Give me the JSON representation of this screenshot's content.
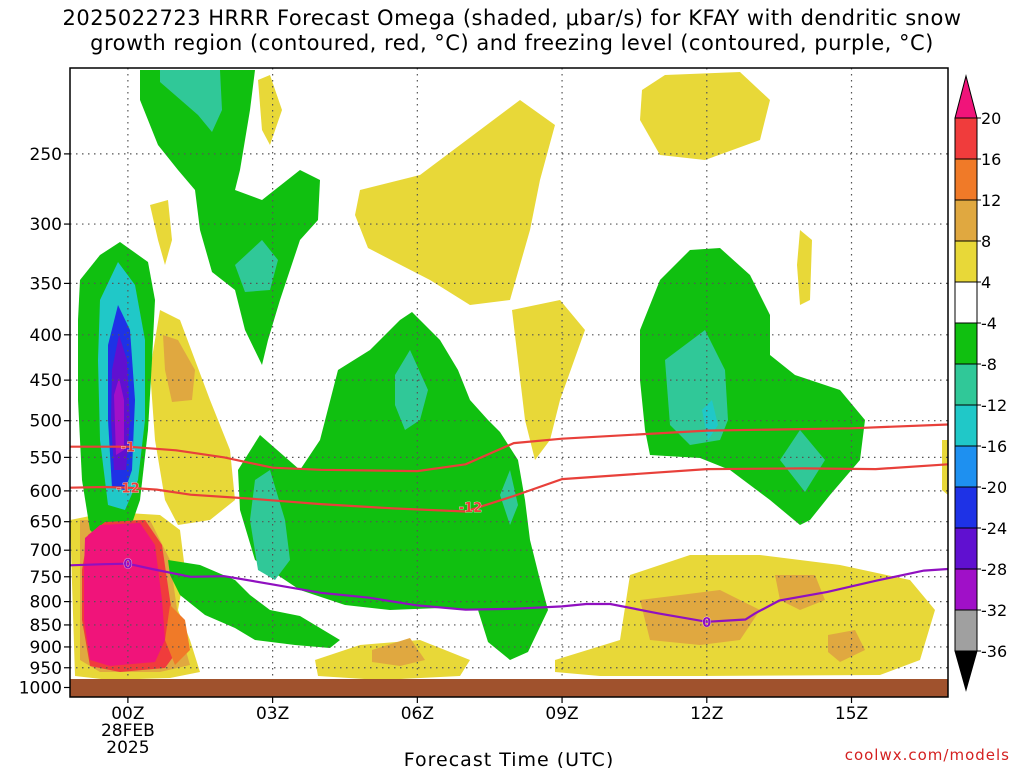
{
  "title_line1": "2025022723 HRRR Forecast Omega (shaded, μbar/s) for KFAY with dendritic snow",
  "title_line2": "growth region (contoured, red, °C) and freezing level (contoured, purple, °C)",
  "credit": "coolwx.com/models",
  "chart_data": {
    "type": "heatmap",
    "title": "2025022723 HRRR Forecast Omega (shaded, μbar/s) for KFAY with dendritic snow growth region (contoured, red, °C) and freezing level (contoured, purple, °C)",
    "xlabel": "Forecast Time (UTC)",
    "ylabel": "",
    "x_unit": "hours",
    "xlim": [
      -1.2,
      17
    ],
    "x_ticks": [
      {
        "hour": 0,
        "label": "00Z",
        "sub1": "28FEB",
        "sub2": "2025"
      },
      {
        "hour": 3,
        "label": "03Z"
      },
      {
        "hour": 6,
        "label": "06Z"
      },
      {
        "hour": 9,
        "label": "09Z"
      },
      {
        "hour": 12,
        "label": "12Z"
      },
      {
        "hour": 15,
        "label": "15Z"
      }
    ],
    "y_scale": "log-pressure",
    "ylim": [
      1025,
      200
    ],
    "y_ticks": [
      250,
      300,
      350,
      400,
      450,
      500,
      550,
      600,
      650,
      700,
      750,
      800,
      850,
      900,
      950,
      1000
    ],
    "grid": true,
    "surface_pressure": 1000,
    "colorbar": {
      "labels": [
        "20",
        "16",
        "12",
        "8",
        "4",
        "-4",
        "-8",
        "-12",
        "-16",
        "-20",
        "-24",
        "-28",
        "-32",
        "-36"
      ],
      "levels": [
        20,
        16,
        12,
        8,
        4,
        -4,
        -8,
        -12,
        -16,
        -20,
        -24,
        -28,
        -32,
        -36
      ],
      "colors": [
        "#f0147a",
        "#f03c3c",
        "#f07a28",
        "#e0a840",
        "#e8d838",
        "#ffffff",
        "#10c010",
        "#30c898",
        "#20c8c8",
        "#1e90f0",
        "#1e32e6",
        "#6010d0",
        "#a010c8",
        "#a0a0a0",
        "#000000"
      ]
    },
    "contours": [
      {
        "name": "-12",
        "color": "#e8403a",
        "label": "-12",
        "points": [
          [
            -1.2,
            595
          ],
          [
            -0.5,
            594
          ],
          [
            0,
            595
          ],
          [
            0.6,
            598
          ],
          [
            1.3,
            606
          ],
          [
            2.5,
            612
          ],
          [
            4,
            621
          ],
          [
            5.5,
            628
          ],
          [
            7,
            633
          ],
          [
            8,
            608
          ],
          [
            9,
            582
          ],
          [
            12,
            567
          ],
          [
            14,
            566
          ],
          [
            15.5,
            567
          ],
          [
            17,
            560
          ]
        ]
      },
      {
        "name": "-1",
        "color": "#e8403a",
        "label": "-1",
        "points": [
          [
            -1.2,
            535
          ],
          [
            0,
            535
          ],
          [
            1,
            540
          ],
          [
            2,
            550
          ],
          [
            3,
            565
          ],
          [
            4,
            568
          ],
          [
            6,
            570
          ],
          [
            7,
            560
          ],
          [
            8,
            530
          ],
          [
            9,
            524
          ],
          [
            12,
            513
          ],
          [
            15,
            510
          ],
          [
            17,
            505
          ]
        ]
      },
      {
        "name": "0",
        "color": "#9010c0",
        "label": "0",
        "points": [
          [
            -1.2,
            728
          ],
          [
            -0.5,
            726
          ],
          [
            0,
            725
          ],
          [
            0.5,
            735
          ],
          [
            1.3,
            750
          ],
          [
            2,
            749
          ],
          [
            3,
            765
          ],
          [
            4,
            782
          ],
          [
            5,
            792
          ],
          [
            6,
            808
          ],
          [
            7,
            817
          ],
          [
            8,
            815
          ],
          [
            9,
            810
          ],
          [
            9.5,
            805
          ],
          [
            10,
            805
          ],
          [
            11,
            825
          ],
          [
            12,
            843
          ],
          [
            12.5,
            840
          ],
          [
            12.8,
            838
          ],
          [
            13,
            825
          ],
          [
            13.5,
            798
          ],
          [
            14.5,
            780
          ],
          [
            15.5,
            758
          ],
          [
            16.5,
            738
          ],
          [
            17,
            735
          ]
        ]
      }
    ]
  }
}
